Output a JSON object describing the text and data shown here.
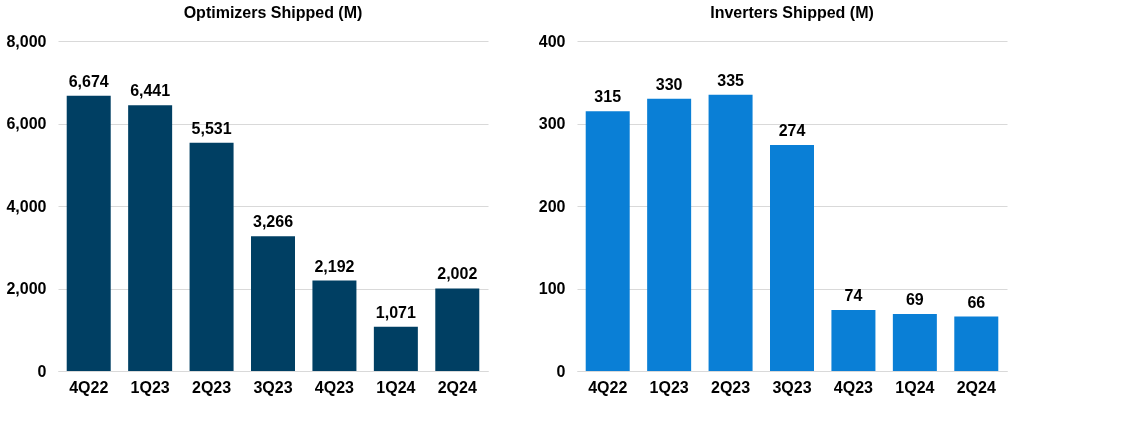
{
  "chart_data": [
    {
      "type": "bar",
      "title": "Optimizers Shipped (M)",
      "categories": [
        "4Q22",
        "1Q23",
        "2Q23",
        "3Q23",
        "4Q23",
        "1Q24",
        "2Q24"
      ],
      "values": [
        6674,
        6441,
        5531,
        3266,
        2192,
        1071,
        2002
      ],
      "value_labels": [
        "6,674",
        "6,441",
        "5,531",
        "3,266",
        "2,192",
        "1,071",
        "2,002"
      ],
      "color": "#003f63",
      "ylim": [
        0,
        8000
      ],
      "yticks": [
        0,
        {
          "value": 2000,
          "label": "2,000"
        },
        {
          "value": 4000,
          "label": "4,000"
        },
        {
          "value": 6000,
          "label": "6,000"
        },
        {
          "value": 8000,
          "label": "8,000"
        }
      ],
      "grid": "y"
    },
    {
      "type": "bar",
      "title": "Inverters Shipped (M)",
      "categories": [
        "4Q22",
        "1Q23",
        "2Q23",
        "3Q23",
        "4Q23",
        "1Q24",
        "2Q24"
      ],
      "values": [
        315,
        330,
        335,
        274,
        74,
        69,
        66
      ],
      "data_labels": true,
      "color": "#0a7fd6",
      "ylim": [
        0,
        400
      ],
      "yticks": [
        0,
        100,
        200,
        300,
        400
      ],
      "grid": "y"
    }
  ]
}
